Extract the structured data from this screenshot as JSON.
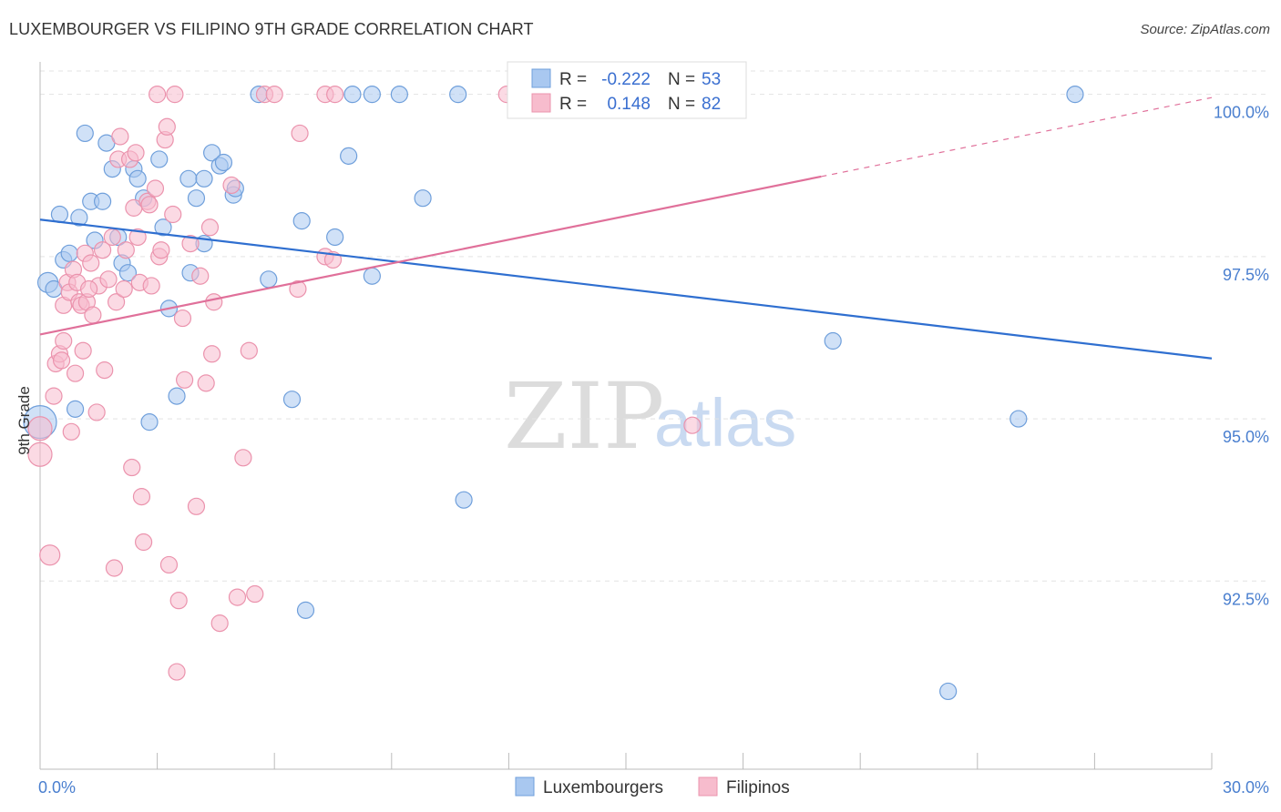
{
  "title": "LUXEMBOURGER VS FILIPINO 9TH GRADE CORRELATION CHART",
  "source": "Source: ZipAtlas.com",
  "watermark": {
    "part1": "ZIP",
    "part2": "atlas"
  },
  "colors": {
    "blue_fill": "#a9c8f0",
    "blue_stroke": "#6f9fdb",
    "blue_line": "#2f6fd0",
    "pink_fill": "#f7bccd",
    "pink_stroke": "#eb93ad",
    "pink_line": "#e0709a",
    "grid": "#e3e3e3",
    "axis": "#bbbbbb"
  },
  "legend": {
    "r_label": "R =",
    "n_label": "N =",
    "rows": [
      {
        "r": "-0.222",
        "n": "53",
        "color": "blue"
      },
      {
        "r": "0.148",
        "n": "82",
        "color": "pink"
      }
    ]
  },
  "chart_data": {
    "type": "scatter",
    "title": "LUXEMBOURGER VS FILIPINO 9TH GRADE CORRELATION CHART",
    "xlabel": "",
    "ylabel": "9th Grade",
    "xlim": [
      0,
      30
    ],
    "ylim": [
      89.6,
      100.5
    ],
    "x_tick_labels": [
      "0.0%",
      "30.0%"
    ],
    "y_ticks": [
      92.5,
      95.0,
      97.5,
      100.0
    ],
    "y_tick_labels": [
      "92.5%",
      "95.0%",
      "97.5%",
      "100.0%"
    ],
    "legend_position": "bottom-center",
    "series": [
      {
        "name": "Luxembourgers",
        "color": "blue",
        "r": -0.222,
        "n": 53,
        "trend": {
          "x0": 0,
          "y0": 98.07,
          "x1": 30,
          "y1": 95.93,
          "solid_until": 30
        },
        "points": [
          [
            0.0,
            94.95,
            18
          ],
          [
            0.2,
            97.1,
            11
          ],
          [
            0.35,
            97.0,
            9
          ],
          [
            0.5,
            98.15,
            9
          ],
          [
            0.6,
            97.45,
            9
          ],
          [
            0.75,
            97.55,
            9
          ],
          [
            0.9,
            95.15,
            9
          ],
          [
            1.0,
            98.1,
            9
          ],
          [
            1.15,
            99.4,
            9
          ],
          [
            1.3,
            98.35,
            9
          ],
          [
            1.4,
            97.75,
            9
          ],
          [
            1.6,
            98.35,
            9
          ],
          [
            1.7,
            99.25,
            9
          ],
          [
            1.85,
            98.85,
            9
          ],
          [
            2.0,
            97.8,
            9
          ],
          [
            2.1,
            97.4,
            9
          ],
          [
            2.25,
            97.25,
            9
          ],
          [
            2.4,
            98.85,
            9
          ],
          [
            2.5,
            98.7,
            9
          ],
          [
            2.65,
            98.4,
            9
          ],
          [
            2.8,
            94.95,
            9
          ],
          [
            3.05,
            99.0,
            9
          ],
          [
            3.15,
            97.95,
            9
          ],
          [
            3.3,
            96.7,
            9
          ],
          [
            3.5,
            95.35,
            9
          ],
          [
            3.8,
            98.7,
            9
          ],
          [
            3.85,
            97.25,
            9
          ],
          [
            4.0,
            98.4,
            9
          ],
          [
            4.2,
            98.7,
            9
          ],
          [
            4.2,
            97.7,
            9
          ],
          [
            4.4,
            99.1,
            9
          ],
          [
            4.6,
            98.9,
            9
          ],
          [
            4.7,
            98.95,
            9
          ],
          [
            4.95,
            98.45,
            9
          ],
          [
            5.0,
            98.55,
            9
          ],
          [
            5.6,
            100.0,
            9
          ],
          [
            5.85,
            97.15,
            9
          ],
          [
            6.45,
            95.3,
            9
          ],
          [
            6.7,
            98.05,
            9
          ],
          [
            6.8,
            92.05,
            9
          ],
          [
            7.55,
            97.8,
            9
          ],
          [
            7.9,
            99.05,
            9
          ],
          [
            8.0,
            100.0,
            9
          ],
          [
            8.5,
            97.2,
            9
          ],
          [
            8.5,
            100.0,
            9
          ],
          [
            9.2,
            100.0,
            9
          ],
          [
            9.8,
            98.4,
            9
          ],
          [
            10.7,
            100.0,
            9
          ],
          [
            10.85,
            93.75,
            9
          ],
          [
            20.3,
            96.2,
            9
          ],
          [
            23.25,
            90.8,
            9
          ],
          [
            25.05,
            95.0,
            9
          ],
          [
            26.5,
            100.0,
            9
          ]
        ]
      },
      {
        "name": "Filipinos",
        "color": "pink",
        "r": 0.148,
        "n": 82,
        "trend": {
          "x0": 0,
          "y0": 96.3,
          "x1": 30,
          "y1": 99.95,
          "solid_until": 20
        },
        "points": [
          [
            0.0,
            94.45,
            13
          ],
          [
            0.0,
            94.85,
            13
          ],
          [
            0.25,
            92.9,
            11
          ],
          [
            0.35,
            95.35,
            9
          ],
          [
            0.4,
            95.85,
            9
          ],
          [
            0.5,
            96.0,
            9
          ],
          [
            0.55,
            95.9,
            9
          ],
          [
            0.6,
            96.75,
            9
          ],
          [
            0.6,
            96.2,
            9
          ],
          [
            0.7,
            97.1,
            9
          ],
          [
            0.75,
            96.95,
            9
          ],
          [
            0.8,
            94.8,
            9
          ],
          [
            0.85,
            97.3,
            9
          ],
          [
            0.9,
            95.7,
            9
          ],
          [
            1.0,
            96.8,
            9
          ],
          [
            1.05,
            96.75,
            9
          ],
          [
            1.1,
            96.05,
            9
          ],
          [
            1.15,
            97.55,
            9
          ],
          [
            1.2,
            96.8,
            9
          ],
          [
            1.3,
            97.4,
            9
          ],
          [
            1.35,
            96.6,
            9
          ],
          [
            1.45,
            95.1,
            9
          ],
          [
            1.5,
            97.05,
            9
          ],
          [
            1.6,
            97.6,
            9
          ],
          [
            1.65,
            95.75,
            9
          ],
          [
            1.75,
            97.15,
            9
          ],
          [
            1.85,
            97.8,
            9
          ],
          [
            1.9,
            92.7,
            9
          ],
          [
            1.95,
            96.8,
            9
          ],
          [
            2.0,
            99.0,
            9
          ],
          [
            2.05,
            99.35,
            9
          ],
          [
            2.15,
            97.0,
            9
          ],
          [
            2.2,
            97.6,
            9
          ],
          [
            2.3,
            99.0,
            9
          ],
          [
            2.35,
            94.25,
            9
          ],
          [
            2.4,
            98.25,
            9
          ],
          [
            2.5,
            97.8,
            9
          ],
          [
            2.55,
            97.1,
            9
          ],
          [
            2.6,
            93.8,
            9
          ],
          [
            2.65,
            93.1,
            9
          ],
          [
            2.75,
            98.35,
            9
          ],
          [
            2.8,
            98.3,
            9
          ],
          [
            2.85,
            97.05,
            9
          ],
          [
            2.95,
            98.55,
            9
          ],
          [
            3.0,
            100.0,
            9
          ],
          [
            3.05,
            97.5,
            9
          ],
          [
            3.1,
            97.6,
            9
          ],
          [
            3.2,
            99.3,
            9
          ],
          [
            3.25,
            99.5,
            9
          ],
          [
            3.3,
            92.75,
            9
          ],
          [
            3.45,
            100.0,
            9
          ],
          [
            3.5,
            91.1,
            9
          ],
          [
            3.55,
            92.2,
            9
          ],
          [
            3.65,
            96.55,
            9
          ],
          [
            3.7,
            95.6,
            9
          ],
          [
            3.85,
            97.7,
            9
          ],
          [
            4.0,
            93.65,
            9
          ],
          [
            4.25,
            95.55,
            9
          ],
          [
            4.35,
            97.95,
            9
          ],
          [
            4.4,
            96.0,
            9
          ],
          [
            4.45,
            96.8,
            9
          ],
          [
            4.6,
            91.85,
            9
          ],
          [
            4.9,
            98.6,
            9
          ],
          [
            5.05,
            92.25,
            9
          ],
          [
            5.2,
            94.4,
            9
          ],
          [
            5.35,
            96.05,
            9
          ],
          [
            5.5,
            92.3,
            9
          ],
          [
            5.75,
            100.0,
            9
          ],
          [
            6.0,
            100.0,
            9
          ],
          [
            6.6,
            97.0,
            9
          ],
          [
            6.65,
            99.4,
            9
          ],
          [
            7.3,
            97.5,
            9
          ],
          [
            7.5,
            97.45,
            9
          ],
          [
            7.3,
            100.0,
            9
          ],
          [
            7.55,
            100.0,
            9
          ],
          [
            11.95,
            100.0,
            9
          ],
          [
            16.7,
            94.9,
            9
          ],
          [
            0.95,
            97.1,
            9
          ],
          [
            1.25,
            97.0,
            9
          ],
          [
            2.45,
            99.1,
            9
          ],
          [
            3.4,
            98.15,
            9
          ],
          [
            4.1,
            97.2,
            9
          ]
        ]
      }
    ]
  },
  "bottom_legend": [
    {
      "label": "Luxembourgers",
      "color": "blue"
    },
    {
      "label": "Filipinos",
      "color": "pink"
    }
  ]
}
